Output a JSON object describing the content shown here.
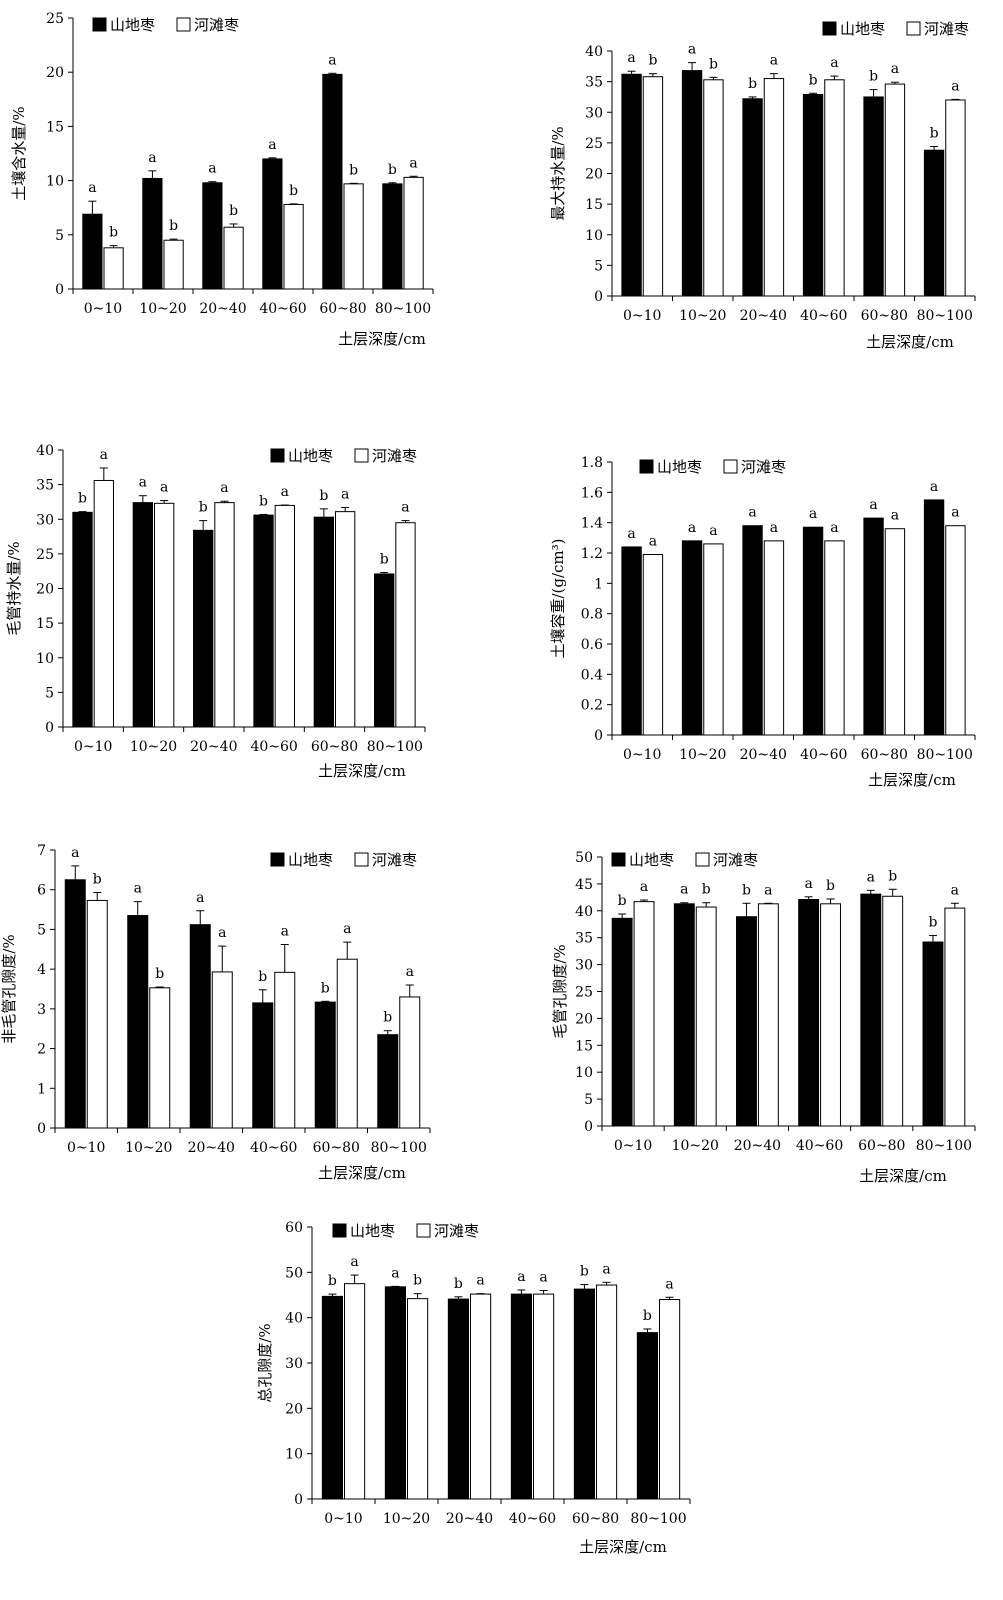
{
  "legend": {
    "mountain": "山地枣",
    "river": "河滩枣"
  },
  "xlabel": "土层深度/cm",
  "categories": [
    "0~10",
    "10~20",
    "20~40",
    "40~60",
    "60~80",
    "80~100"
  ],
  "chart_data": [
    {
      "type": "bar",
      "ylabel": "土壤含水量/%",
      "ylim": [
        0,
        25
      ],
      "yticks": [
        "0",
        "5",
        "10",
        "15",
        "20",
        "25"
      ],
      "legend_position": "top-left",
      "series": [
        {
          "name": "山地枣",
          "color": "#000000",
          "values": [
            6.9,
            10.2,
            9.8,
            12.0,
            19.8,
            9.7
          ],
          "errors": [
            1.2,
            0.7,
            0.1,
            0.1,
            0.1,
            0.1
          ],
          "labels": [
            "a",
            "a",
            "a",
            "a",
            "a",
            "b"
          ]
        },
        {
          "name": "河滩枣",
          "color": "#ffffff",
          "values": [
            3.8,
            4.5,
            5.7,
            7.8,
            9.7,
            10.3
          ],
          "errors": [
            0.2,
            0.1,
            0.3,
            0.05,
            0.05,
            0.1
          ],
          "labels": [
            "b",
            "b",
            "b",
            "b",
            "b",
            "a"
          ]
        }
      ]
    },
    {
      "type": "bar",
      "ylabel": "最大持水量/%",
      "ylim": [
        0,
        40
      ],
      "yticks": [
        "0",
        "5",
        "10",
        "15",
        "20",
        "25",
        "30",
        "35",
        "40"
      ],
      "legend_position": "top-right",
      "series": [
        {
          "name": "山地枣",
          "color": "#000000",
          "values": [
            36.2,
            36.8,
            32.2,
            32.9,
            32.5,
            23.8
          ],
          "errors": [
            0.5,
            1.3,
            0.3,
            0.2,
            1.2,
            0.6
          ],
          "labels": [
            "a",
            "a",
            "b",
            "b",
            "b",
            "b"
          ]
        },
        {
          "name": "河滩枣",
          "color": "#ffffff",
          "values": [
            35.8,
            35.3,
            35.5,
            35.3,
            34.6,
            32.0
          ],
          "errors": [
            0.5,
            0.4,
            0.8,
            0.6,
            0.3,
            0.1
          ],
          "labels": [
            "b",
            "b",
            "a",
            "a",
            "a",
            "a"
          ]
        }
      ]
    },
    {
      "type": "bar",
      "ylabel": "毛管持水量/%",
      "ylim": [
        0,
        40
      ],
      "yticks": [
        "0",
        "5",
        "10",
        "15",
        "20",
        "25",
        "30",
        "35",
        "40"
      ],
      "legend_position": "top-right",
      "series": [
        {
          "name": "山地枣",
          "color": "#000000",
          "values": [
            31.0,
            32.4,
            28.4,
            30.6,
            30.3,
            22.1
          ],
          "errors": [
            0.1,
            1.0,
            1.4,
            0.1,
            1.2,
            0.2
          ],
          "labels": [
            "b",
            "a",
            "b",
            "b",
            "b",
            "b"
          ]
        },
        {
          "name": "河滩枣",
          "color": "#ffffff",
          "values": [
            35.6,
            32.3,
            32.4,
            32.0,
            31.1,
            29.5
          ],
          "errors": [
            1.8,
            0.4,
            0.2,
            0.05,
            0.6,
            0.3
          ],
          "labels": [
            "a",
            "a",
            "a",
            "a",
            "a",
            "a"
          ]
        }
      ]
    },
    {
      "type": "bar",
      "ylabel": "土壤容重/(g/cm³)",
      "ylim": [
        0,
        1.8
      ],
      "yticks": [
        "0",
        "0.2",
        "0.4",
        "0.6",
        "0.8",
        "1",
        "1.2",
        "1.4",
        "1.6",
        "1.8"
      ],
      "legend_position": "top-left",
      "series": [
        {
          "name": "山地枣",
          "color": "#000000",
          "values": [
            1.24,
            1.28,
            1.38,
            1.37,
            1.43,
            1.55
          ],
          "errors": [
            0,
            0,
            0,
            0,
            0,
            0
          ],
          "labels": [
            "a",
            "a",
            "a",
            "a",
            "a",
            "a"
          ]
        },
        {
          "name": "河滩枣",
          "color": "#ffffff",
          "values": [
            1.19,
            1.26,
            1.28,
            1.28,
            1.36,
            1.38
          ],
          "errors": [
            0,
            0,
            0,
            0,
            0,
            0
          ],
          "labels": [
            "a",
            "a",
            "a",
            "a",
            "a",
            "a"
          ]
        }
      ]
    },
    {
      "type": "bar",
      "ylabel": "非毛管孔隙度/%",
      "ylim": [
        0,
        7
      ],
      "yticks": [
        "0",
        "1",
        "2",
        "3",
        "4",
        "5",
        "6",
        "7"
      ],
      "legend_position": "top-right",
      "series": [
        {
          "name": "山地枣",
          "color": "#000000",
          "values": [
            6.25,
            5.35,
            5.12,
            3.15,
            3.17,
            2.35
          ],
          "errors": [
            0.35,
            0.35,
            0.35,
            0.33,
            0.02,
            0.1
          ],
          "labels": [
            "a",
            "a",
            "a",
            "b",
            "b",
            "b"
          ]
        },
        {
          "name": "河滩枣",
          "color": "#ffffff",
          "values": [
            5.73,
            3.53,
            3.93,
            3.92,
            4.25,
            3.3
          ],
          "errors": [
            0.2,
            0.02,
            0.65,
            0.7,
            0.43,
            0.3
          ],
          "labels": [
            "b",
            "b",
            "a",
            "a",
            "a",
            "a"
          ]
        }
      ]
    },
    {
      "type": "bar",
      "ylabel": "毛管孔隙度/%",
      "ylim": [
        0,
        50
      ],
      "yticks": [
        "0",
        "5",
        "10",
        "15",
        "20",
        "25",
        "30",
        "35",
        "40",
        "45",
        "50"
      ],
      "legend_position": "top-center",
      "series": [
        {
          "name": "山地枣",
          "color": "#000000",
          "values": [
            38.6,
            41.3,
            38.9,
            42.1,
            43.1,
            34.2
          ],
          "errors": [
            0.8,
            0.2,
            2.5,
            0.5,
            0.7,
            1.2
          ],
          "labels": [
            "b",
            "a",
            "b",
            "a",
            "a",
            "b"
          ]
        },
        {
          "name": "河滩枣",
          "color": "#ffffff",
          "values": [
            41.7,
            40.7,
            41.3,
            41.3,
            42.7,
            40.5
          ],
          "errors": [
            0.3,
            0.8,
            0.1,
            0.9,
            1.3,
            0.9
          ],
          "labels": [
            "a",
            "b",
            "a",
            "b",
            "b",
            "a"
          ]
        }
      ]
    },
    {
      "type": "bar",
      "ylabel": "总孔隙度/%",
      "ylim": [
        0,
        60
      ],
      "yticks": [
        "0",
        "10",
        "20",
        "30",
        "40",
        "50",
        "60"
      ],
      "legend_position": "top-left",
      "series": [
        {
          "name": "山地枣",
          "color": "#000000",
          "values": [
            44.7,
            46.8,
            44.1,
            45.2,
            46.3,
            36.7
          ],
          "errors": [
            0.5,
            0.1,
            0.5,
            0.9,
            1.0,
            0.8
          ],
          "labels": [
            "b",
            "a",
            "b",
            "a",
            "b",
            "b"
          ]
        },
        {
          "name": "河滩枣",
          "color": "#ffffff",
          "values": [
            47.5,
            44.2,
            45.2,
            45.2,
            47.2,
            44.0
          ],
          "errors": [
            1.9,
            1.1,
            0.1,
            0.8,
            0.6,
            0.5
          ],
          "labels": [
            "a",
            "b",
            "a",
            "a",
            "a",
            "a"
          ]
        }
      ]
    }
  ]
}
